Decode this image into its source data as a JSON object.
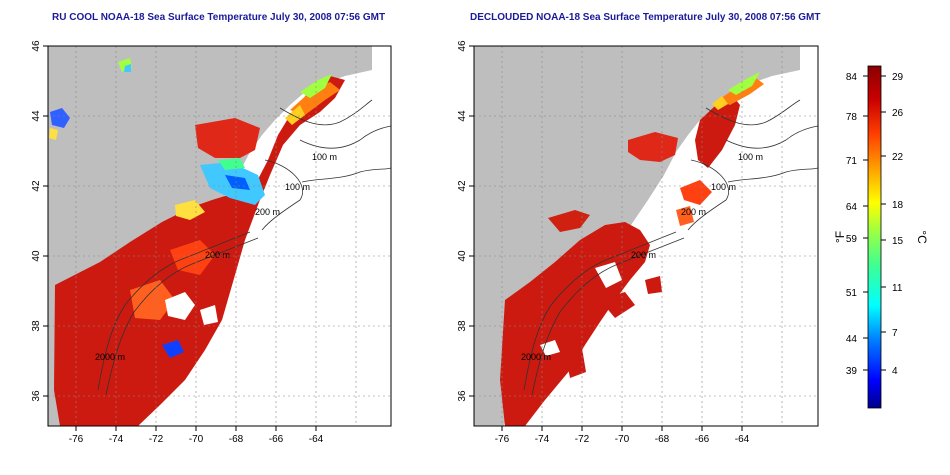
{
  "maps": [
    {
      "title": "RU COOL NOAA-18 Sea Surface Temperature July 30, 2008 07:56 GMT",
      "x_ticks": [
        "-76",
        "-74",
        "-72",
        "-70",
        "-68",
        "-66",
        "-64"
      ],
      "y_ticks": [
        "46",
        "44",
        "42",
        "40",
        "38",
        "36"
      ],
      "contour_labels": [
        "100 m",
        "100 m",
        "200 m",
        "200 m",
        "2000 m"
      ]
    },
    {
      "title": "DECLOUDED NOAA-18 Sea Surface Temperature July 30, 2008 07:56 GMT",
      "x_ticks": [
        "-76",
        "-74",
        "-72",
        "-70",
        "-68",
        "-66",
        "-64"
      ],
      "y_ticks": [
        "46",
        "44",
        "42",
        "40",
        "38",
        "36"
      ],
      "contour_labels": [
        "100 m",
        "100 m",
        "200 m",
        "200 m",
        "2000 m"
      ]
    }
  ],
  "colorbar": {
    "fahrenheit_label": "°F",
    "celsius_label": "°C",
    "fahrenheit_ticks": [
      "84",
      "78",
      "71",
      "64",
      "59",
      "51",
      "44",
      "39"
    ],
    "celsius_ticks": [
      "29",
      "26",
      "22",
      "18",
      "15",
      "11",
      "7",
      "4"
    ],
    "colors": [
      "#00008b",
      "#0000ff",
      "#0080ff",
      "#00ffff",
      "#40ff90",
      "#a0ff40",
      "#ffff00",
      "#ffa000",
      "#ff4000",
      "#cc0000",
      "#8b0000"
    ]
  }
}
